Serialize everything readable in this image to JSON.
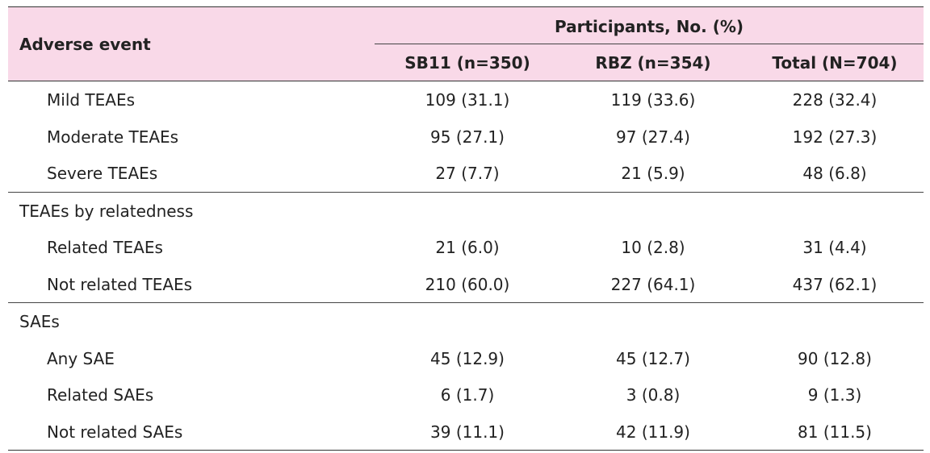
{
  "header": {
    "adverse_event": "Adverse event",
    "participants": "Participants, No. (%)",
    "columns": [
      "SB11 (n=350)",
      "RBZ (n=354)",
      "Total (N=704)"
    ]
  },
  "rows": [
    {
      "label": "Mild TEAEs",
      "values": [
        "109 (31.1)",
        "119 (33.6)",
        "228 (32.4)"
      ]
    },
    {
      "label": "Moderate TEAEs",
      "values": [
        "95 (27.1)",
        "97 (27.4)",
        "192 (27.3)"
      ]
    },
    {
      "label": "Severe TEAEs",
      "values": [
        "27 (7.7)",
        "21 (5.9)",
        "48 (6.8)"
      ]
    },
    {
      "label": "TEAEs by relatedness",
      "values": [
        "",
        "",
        ""
      ]
    },
    {
      "label": "Related TEAEs",
      "values": [
        "21 (6.0)",
        "10 (2.8)",
        "31 (4.4)"
      ]
    },
    {
      "label": "Not related TEAEs",
      "values": [
        "210 (60.0)",
        "227 (64.1)",
        "437 (62.1)"
      ]
    },
    {
      "label": "SAEs",
      "values": [
        "",
        "",
        ""
      ]
    },
    {
      "label": "Any SAE",
      "values": [
        "45 (12.9)",
        "45 (12.7)",
        "90 (12.8)"
      ]
    },
    {
      "label": "Related SAEs",
      "values": [
        "6 (1.7)",
        "3 (0.8)",
        "9 (1.3)"
      ]
    },
    {
      "label": "Not related SAEs",
      "values": [
        "39 (11.1)",
        "42 (11.9)",
        "81 (11.5)"
      ]
    }
  ],
  "colors": {
    "header_bg": "#f9d9e8",
    "rule": "#333333",
    "text": "#222222"
  }
}
